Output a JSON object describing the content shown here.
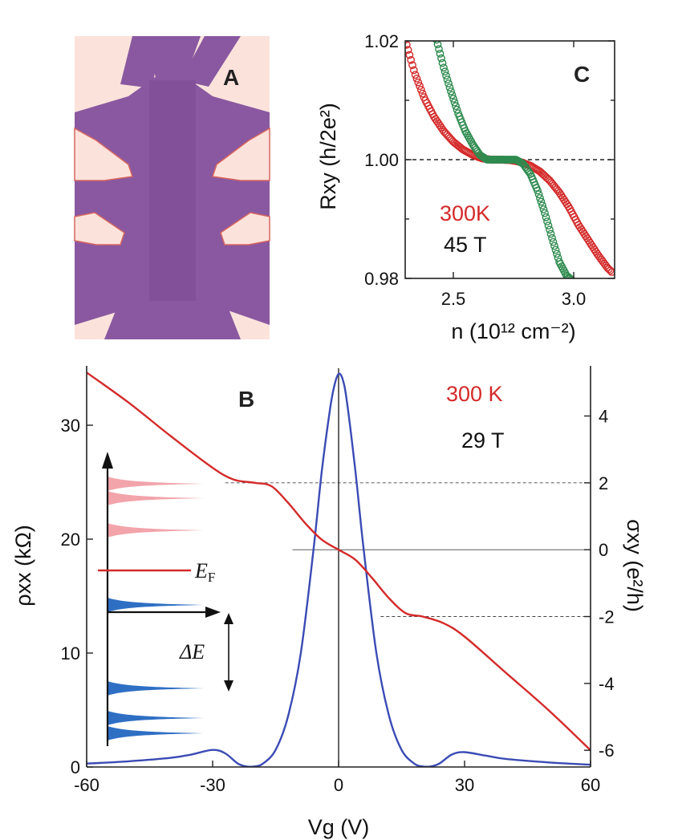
{
  "colors": {
    "red": "#d42a2a",
    "blue": "#3b4bb5",
    "green": "#2e8b4f",
    "pink": "#f2a4aa",
    "levelBlue": "#2e6fc4",
    "violet": "#8a58a0",
    "purple": "#7b4a93",
    "contact": "#fbe3dc"
  },
  "panelA": {
    "label": "A"
  },
  "panelB": {
    "label": "B",
    "temp": "300 K",
    "field": "29 T",
    "ylabel_left": "ρxx (kΩ)",
    "ylabel_right": "σxy (e²/h)",
    "xlabel": "Vg (V)",
    "inset": {
      "ef": "E",
      "ef_sub": "F",
      "gap": "ΔE"
    }
  },
  "panelC": {
    "label": "C",
    "temp": "300K",
    "field": "45 T",
    "ylabel": "Rxy (h/2e²)",
    "xlabel": "n (10¹² cm⁻²)"
  },
  "chart_data": [
    {
      "type": "line",
      "panel": "B",
      "xlabel": "Vg (V)",
      "ylabel": "ρxx (kΩ)",
      "y2label": "σxy (e²/h)",
      "xlim": [
        -60,
        60
      ],
      "ylim": [
        0,
        35
      ],
      "y2lim": [
        -6.5,
        5.5
      ],
      "xticks": [
        -60,
        -30,
        0,
        30,
        60
      ],
      "yticks": [
        0,
        10,
        20,
        30
      ],
      "y2ticks": [
        -6,
        -4,
        -2,
        0,
        2,
        4
      ],
      "annotations": [
        "300 K",
        "29 T"
      ],
      "series": [
        {
          "axis": "left",
          "color": "blue",
          "x": [
            -60,
            -50,
            -40,
            -35,
            -30,
            -27,
            -24,
            -22,
            -20,
            -18,
            -15,
            -12,
            -9,
            -6,
            -4,
            -2,
            -1,
            0,
            1,
            2,
            4,
            6,
            9,
            12,
            15,
            18,
            20,
            22,
            24,
            27,
            30,
            35,
            40,
            50,
            60
          ],
          "y": [
            0.3,
            0.5,
            0.8,
            1.1,
            1.5,
            1.2,
            0.3,
            0.05,
            0.05,
            0.3,
            1.5,
            4.5,
            10,
            19,
            26,
            31.5,
            33.5,
            34.5,
            34,
            32,
            26,
            19,
            10,
            4.5,
            1.5,
            0.3,
            0.05,
            0.05,
            0.3,
            1.1,
            1.3,
            1.0,
            0.7,
            0.4,
            0.2
          ]
        },
        {
          "axis": "right",
          "color": "red",
          "x": [
            -60,
            -50,
            -40,
            -30,
            -25,
            -20,
            -16,
            -12,
            -8,
            -4,
            0,
            4,
            8,
            12,
            16,
            20,
            25,
            30,
            40,
            50,
            60
          ],
          "y": [
            5.3,
            4.4,
            3.4,
            2.45,
            2.1,
            2.0,
            1.9,
            1.4,
            0.8,
            0.3,
            0,
            -0.3,
            -0.85,
            -1.45,
            -1.9,
            -2.0,
            -2.2,
            -2.6,
            -3.7,
            -4.8,
            -6.0
          ]
        }
      ],
      "reference_lines_y2": [
        2,
        0,
        -2
      ]
    },
    {
      "type": "scatter",
      "panel": "C",
      "xlabel": "n (10¹² cm⁻²)",
      "ylabel": "Rxy (h/2e²)",
      "xlim": [
        2.3,
        3.17
      ],
      "ylim": [
        0.98,
        1.02
      ],
      "xticks": [
        2.5,
        3.0
      ],
      "yticks": [
        0.98,
        1.0,
        1.02
      ],
      "annotations": [
        "300K",
        "45 T"
      ],
      "reference_line_y": 1.0,
      "series": [
        {
          "color": "red",
          "x": [
            2.3,
            2.34,
            2.38,
            2.42,
            2.46,
            2.5,
            2.54,
            2.58,
            2.62,
            2.66,
            2.7,
            2.74,
            2.78,
            2.82,
            2.86,
            2.9,
            2.94,
            2.98,
            3.02,
            3.06,
            3.1,
            3.14,
            3.16
          ],
          "y": [
            1.0202,
            1.0145,
            1.0103,
            1.0072,
            1.0048,
            1.003,
            1.0017,
            1.0008,
            1.0002,
            1.0,
            1.0,
            0.9999,
            0.9996,
            0.999,
            0.998,
            0.9965,
            0.9945,
            0.992,
            0.989,
            0.9865,
            0.984,
            0.9818,
            0.981
          ]
        },
        {
          "color": "green",
          "x": [
            2.43,
            2.46,
            2.49,
            2.52,
            2.55,
            2.58,
            2.61,
            2.64,
            2.67,
            2.7,
            2.73,
            2.76,
            2.79,
            2.82,
            2.85,
            2.88,
            2.91,
            2.94,
            2.97,
            2.99
          ],
          "y": [
            1.0202,
            1.0155,
            1.0115,
            1.0078,
            1.0048,
            1.0026,
            1.0008,
            1.0,
            1.0,
            1.0,
            1.0,
            1.0,
            0.9993,
            0.9976,
            0.9948,
            0.991,
            0.9868,
            0.9828,
            0.9805,
            0.9798
          ]
        }
      ]
    }
  ]
}
